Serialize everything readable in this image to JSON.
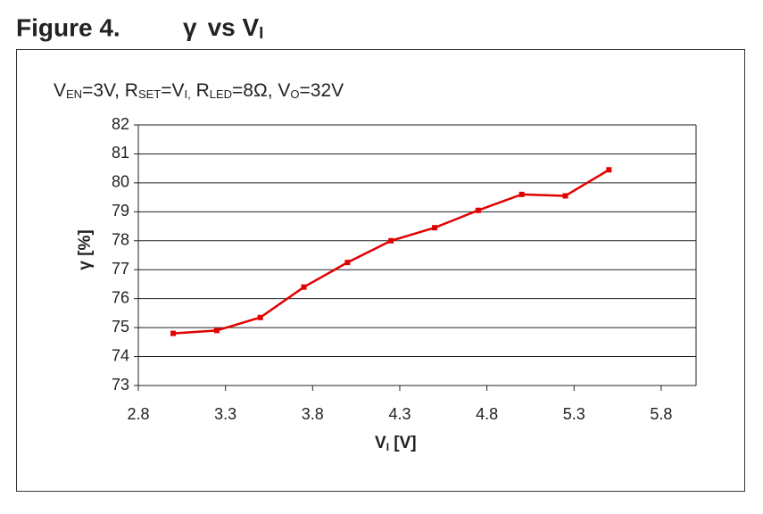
{
  "chart_data": {
    "type": "line",
    "figure_label": "Figure 4.",
    "title_parts": [
      {
        "text": "γ"
      },
      {
        "text": "vs V"
      },
      {
        "text": "I",
        "sub": true
      }
    ],
    "subtitle_parts": [
      {
        "text": "V"
      },
      {
        "text": "EN",
        "sub": true
      },
      {
        "text": "=3V, R"
      },
      {
        "text": "SET",
        "sub": true
      },
      {
        "text": "=V"
      },
      {
        "text": "I,",
        "sub": true
      },
      {
        "text": " R"
      },
      {
        "text": "LED",
        "sub": true
      },
      {
        "text": "=8Ω,  V"
      },
      {
        "text": "O",
        "sub": true
      },
      {
        "text": "=32V"
      }
    ],
    "y_label": "γ [%]",
    "x_label_parts": [
      {
        "text": "V"
      },
      {
        "text": "I",
        "sub": true
      },
      {
        "text": " [V]"
      }
    ],
    "x": [
      3.0,
      3.25,
      3.5,
      3.75,
      4.0,
      4.25,
      4.5,
      4.75,
      5.0,
      5.25,
      5.5
    ],
    "series": [
      {
        "name": "γ",
        "color": "#e00000",
        "values": [
          74.8,
          74.9,
          75.35,
          76.4,
          77.25,
          78.0,
          78.45,
          79.05,
          79.6,
          79.55,
          80.45
        ]
      }
    ],
    "xlim": [
      2.8,
      6.0
    ],
    "xticks": [
      2.8,
      3.3,
      3.8,
      4.3,
      4.8,
      5.3,
      5.8
    ],
    "ylim": [
      73,
      82
    ],
    "yticks": [
      73,
      74,
      75,
      76,
      77,
      78,
      79,
      80,
      81,
      82
    ],
    "grid": true
  }
}
